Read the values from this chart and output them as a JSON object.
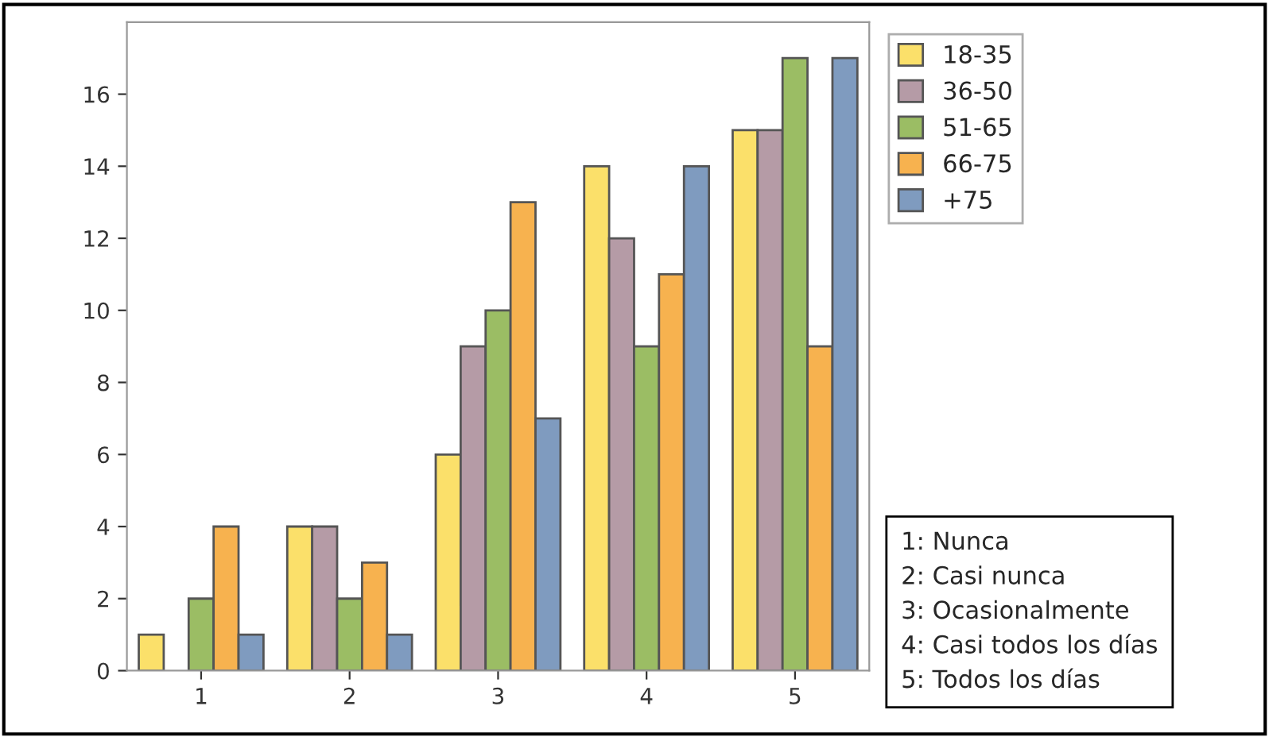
{
  "chart_data": {
    "type": "bar",
    "categories": [
      "1",
      "2",
      "3",
      "4",
      "5"
    ],
    "series": [
      {
        "name": "18-35",
        "color": "#fbe06a",
        "values": [
          1,
          4,
          6,
          14,
          15
        ]
      },
      {
        "name": "36-50",
        "color": "#b59ba6",
        "values": [
          null,
          4,
          9,
          12,
          15
        ]
      },
      {
        "name": "51-65",
        "color": "#9bbd64",
        "values": [
          2,
          2,
          10,
          9,
          17
        ]
      },
      {
        "name": "66-75",
        "color": "#f7b24f",
        "values": [
          4,
          3,
          13,
          11,
          9
        ]
      },
      {
        "name": "+75",
        "color": "#7f9bbf",
        "values": [
          1,
          1,
          7,
          14,
          17
        ]
      }
    ],
    "ylim": [
      0,
      18
    ],
    "yticks": [
      0,
      2,
      4,
      6,
      8,
      10,
      12,
      14,
      16
    ],
    "grid": false,
    "legend": "top right",
    "annotations": [
      "1: Nunca\n2: Casi nunca\n3: Ocasionalmente\n4: Casi todos los días\n5: Todos los días"
    ]
  }
}
